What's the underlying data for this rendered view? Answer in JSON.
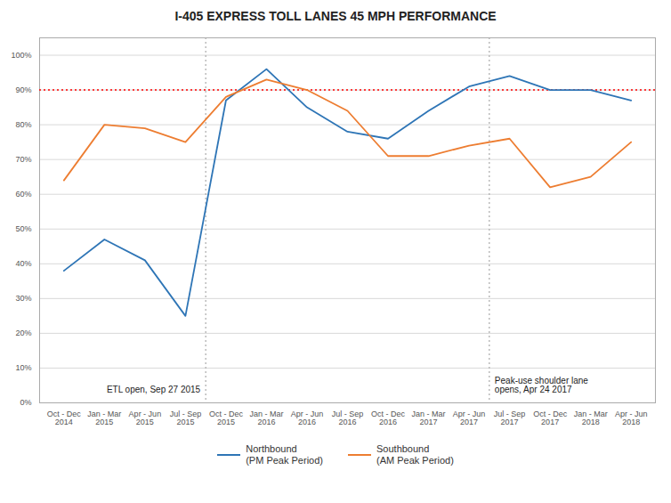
{
  "chart_data": {
    "type": "line",
    "title": "I-405 EXPRESS TOLL LANES 45 MPH PERFORMANCE",
    "categories": [
      "Oct - Dec\n2014",
      "Jan - Mar\n2015",
      "Apr - Jun\n2015",
      "Jul - Sep\n2015",
      "Oct - Dec\n2015",
      "Jan - Mar\n2016",
      "Apr - Jun\n2016",
      "Jul - Sep\n2016",
      "Oct - Dec\n2016",
      "Jan - Mar\n2017",
      "Apr - Jun\n2017",
      "Jul - Sep\n2017",
      "Oct - Dec\n2017",
      "Jan - Mar\n2018",
      "Apr - Jun\n2018"
    ],
    "series": [
      {
        "name": "Northbound\n(PM Peak Period)",
        "color": "#2E75B6",
        "values": [
          0.38,
          0.47,
          0.41,
          0.25,
          0.87,
          0.96,
          0.85,
          0.78,
          0.76,
          0.84,
          0.91,
          0.94,
          0.9,
          0.9,
          0.87
        ]
      },
      {
        "name": "Southbound\n(AM Peak Period)",
        "color": "#ED7D31",
        "values": [
          0.64,
          0.8,
          0.79,
          0.75,
          0.88,
          0.93,
          0.9,
          0.84,
          0.71,
          0.71,
          0.74,
          0.76,
          0.62,
          0.65,
          0.75
        ]
      }
    ],
    "target_line": {
      "value": 0.9,
      "color": "#FF0000",
      "line_style": "dotted"
    },
    "annotations": [
      {
        "text": "ETL open, Sep 27 2015",
        "x": 3.5
      },
      {
        "text": "Peak-use shoulder lane\nopens, Apr 24 2017",
        "x": 10.5
      }
    ],
    "ylim": [
      0,
      1.05
    ],
    "yticks": [
      {
        "value": 0.0,
        "label": "0%"
      },
      {
        "value": 0.1,
        "label": "10%"
      },
      {
        "value": 0.2,
        "label": "20%"
      },
      {
        "value": 0.3,
        "label": "30%"
      },
      {
        "value": 0.4,
        "label": "40%"
      },
      {
        "value": 0.5,
        "label": "50%"
      },
      {
        "value": 0.6,
        "label": "60%"
      },
      {
        "value": 0.7,
        "label": "70%"
      },
      {
        "value": 0.8,
        "label": "80%"
      },
      {
        "value": 0.9,
        "label": "90%"
      },
      {
        "value": 1.0,
        "label": "100%"
      }
    ],
    "grid": true,
    "legend": "bottom"
  }
}
